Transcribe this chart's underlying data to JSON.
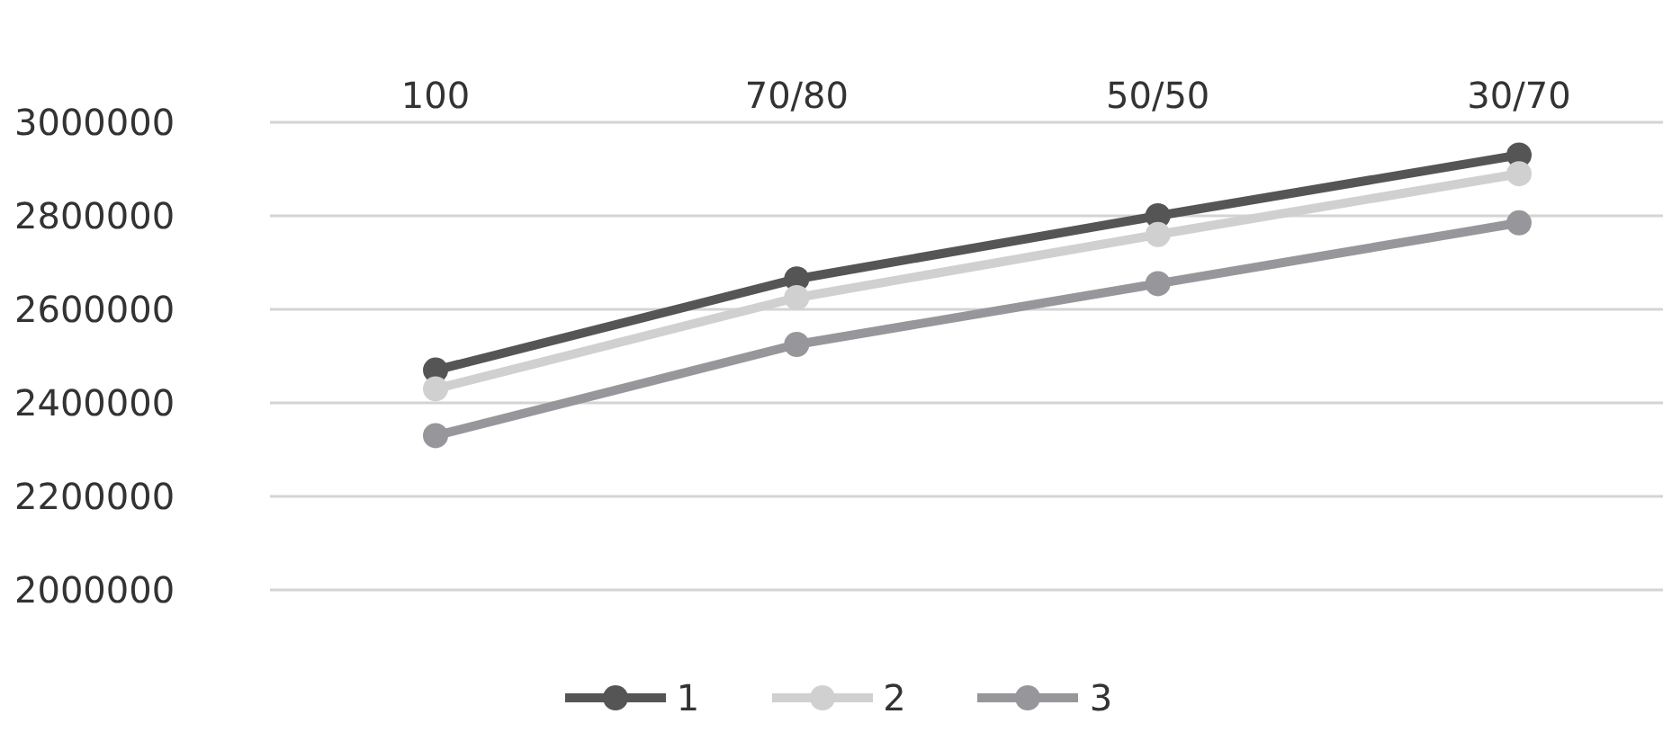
{
  "chart_data": {
    "type": "line",
    "categories": [
      "100",
      "70/80",
      "50/50",
      "30/70"
    ],
    "series": [
      {
        "name": "1",
        "color": "#555555",
        "values": [
          2470000,
          2665000,
          2800000,
          2930000
        ]
      },
      {
        "name": "2",
        "color": "#d0d0d0",
        "values": [
          2430000,
          2625000,
          2760000,
          2890000
        ]
      },
      {
        "name": "3",
        "color": "#97979b",
        "values": [
          2330000,
          2525000,
          2655000,
          2785000
        ]
      }
    ],
    "ylim": [
      2000000,
      3000000
    ],
    "yticks": [
      2000000,
      2200000,
      2400000,
      2600000,
      2800000,
      3000000
    ],
    "grid": "y",
    "legend": "bottom",
    "marker": "circle",
    "line_style": "solid"
  }
}
